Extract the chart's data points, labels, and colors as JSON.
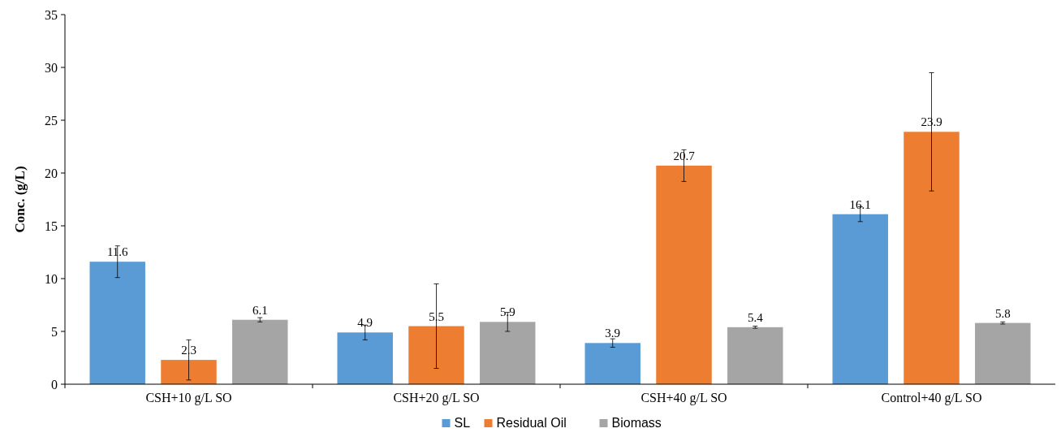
{
  "chart_data": {
    "type": "bar",
    "ylabel": "Conc. (g/L)",
    "categories": [
      "CSH+10 g/L SO",
      "CSH+20 g/L SO",
      "CSH+40 g/L SO",
      "Control+40 g/L SO"
    ],
    "series": [
      {
        "name": "SL",
        "color": "#5b9bd5",
        "values": [
          11.6,
          4.9,
          3.9,
          16.1
        ],
        "errors": [
          1.5,
          0.7,
          0.4,
          0.7
        ]
      },
      {
        "name": "Residual Oil",
        "color": "#ed7d31",
        "values": [
          2.3,
          5.5,
          20.7,
          23.9
        ],
        "errors": [
          1.9,
          4.0,
          1.5,
          5.6
        ]
      },
      {
        "name": "Biomass",
        "color": "#a5a5a5",
        "values": [
          6.1,
          5.9,
          5.4,
          5.8
        ],
        "errors": [
          0.2,
          0.9,
          0.1,
          0.1
        ]
      }
    ],
    "ylim": [
      0,
      35
    ],
    "yticks": [
      0,
      5,
      10,
      15,
      20,
      25,
      30,
      35
    ],
    "data_labels": true,
    "grid": false,
    "legend": "bottom"
  }
}
